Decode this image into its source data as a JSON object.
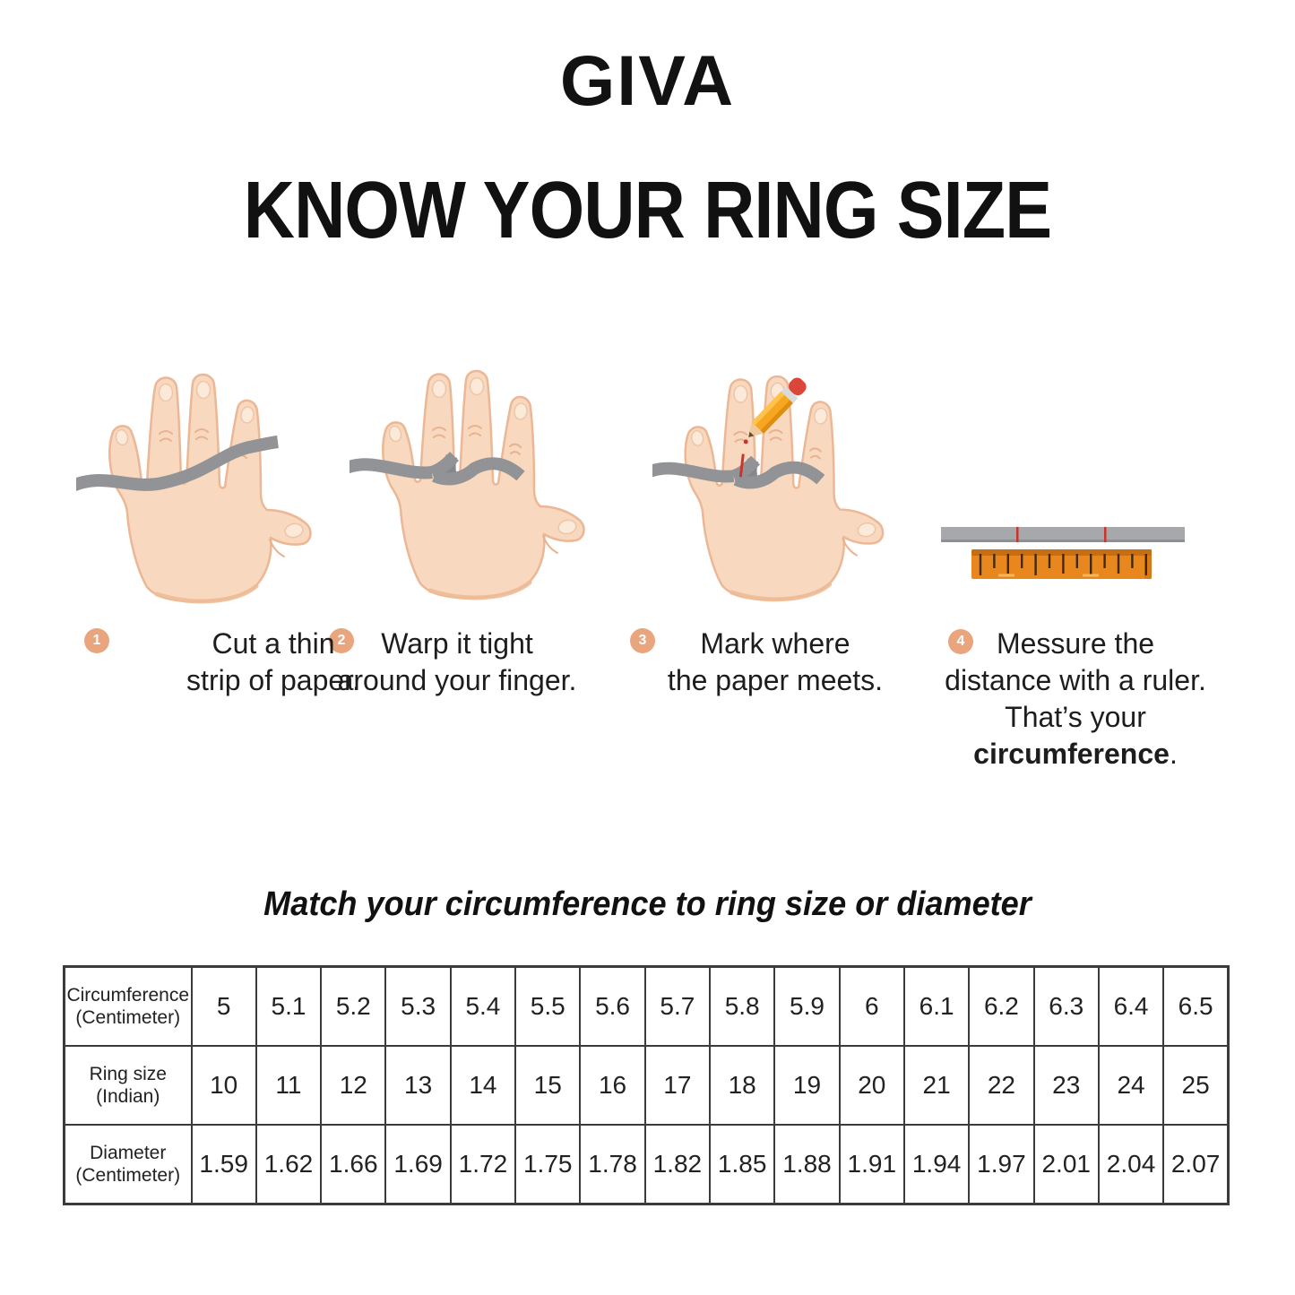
{
  "brand": {
    "name": "GIVA"
  },
  "title": "KNOW YOUR RING SIZE",
  "steps": [
    {
      "number": "1",
      "line1": "Cut a thin",
      "line2": "strip of paper."
    },
    {
      "number": "2",
      "line1": "Warp it tight",
      "line2": "around your finger."
    },
    {
      "number": "3",
      "line1": "Mark where",
      "line2": "the paper meets."
    },
    {
      "number": "4",
      "line1": "Messure the",
      "line2": "distance with a ruler.",
      "line3_prefix": "That’s your ",
      "line3_bold": "circumference",
      "line3_suffix": "."
    }
  ],
  "subtitle": "Match your circumference to ring size or diameter",
  "size_table": {
    "rows": [
      {
        "header_line1": "Circumference",
        "header_line2": "(Centimeter)",
        "values": [
          "5",
          "5.1",
          "5.2",
          "5.3",
          "5.4",
          "5.5",
          "5.6",
          "5.7",
          "5.8",
          "5.9",
          "6",
          "6.1",
          "6.2",
          "6.3",
          "6.4",
          "6.5"
        ]
      },
      {
        "header_line1": "Ring size",
        "header_line2": "(Indian)",
        "values": [
          "10",
          "11",
          "12",
          "13",
          "14",
          "15",
          "16",
          "17",
          "18",
          "19",
          "20",
          "21",
          "22",
          "23",
          "24",
          "25"
        ]
      },
      {
        "header_line1": "Diameter",
        "header_line2": "(Centimeter)",
        "values": [
          "1.59",
          "1.62",
          "1.66",
          "1.69",
          "1.72",
          "1.75",
          "1.78",
          "1.82",
          "1.85",
          "1.88",
          "1.91",
          "1.94",
          "1.97",
          "2.01",
          "2.04",
          "2.07"
        ]
      }
    ]
  },
  "illustrations": [
    {
      "name": "hand-with-paper-strip"
    },
    {
      "name": "hand-strip-wrapped-around-finger"
    },
    {
      "name": "hand-strip-marked-with-pencil"
    },
    {
      "name": "paper-strip-and-ruler"
    }
  ],
  "colors": {
    "badge": "#E8A57E",
    "skin": "#F8D8BE",
    "skin_outline": "#EBB795",
    "strip_gray": "#919396",
    "ruler_orange": "#E8871E",
    "ruler_dark": "#C76E12",
    "mark_red": "#C9342B",
    "pencil_yellow": "#F6A71F",
    "eraser_red": "#DC4638",
    "text": "#1D1D1D"
  }
}
